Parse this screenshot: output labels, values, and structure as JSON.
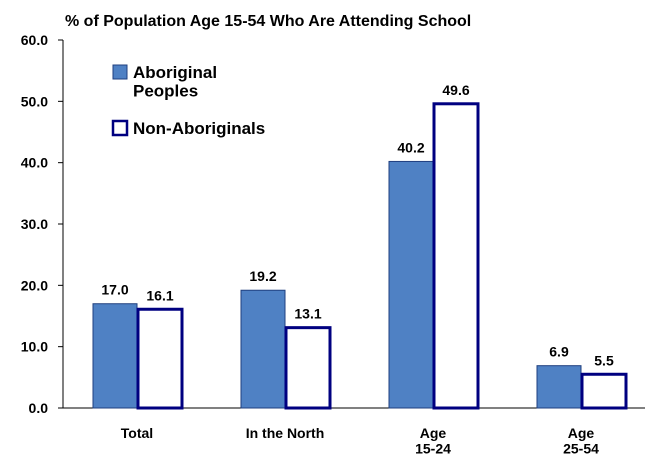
{
  "chart_data": {
    "type": "bar",
    "title": "% of Population Age 15-54 Who Are Attending School",
    "categories": [
      "Total",
      "In the North",
      "Age\n15-24",
      "Age\n25-54"
    ],
    "series": [
      {
        "name": "Aboriginal\nPeoples",
        "color": "#4f81c4",
        "edge": "#1f3f7f",
        "values": [
          17.0,
          19.2,
          40.2,
          6.9
        ],
        "value_labels": [
          "17.0",
          "19.2",
          "40.2",
          "6.9"
        ]
      },
      {
        "name": "Non-Aboriginals",
        "color": "#ffffff",
        "edge": "#000080",
        "values": [
          16.1,
          13.1,
          49.6,
          5.5
        ],
        "value_labels": [
          "16.1",
          "13.1",
          "49.6",
          "5.5"
        ]
      }
    ],
    "ylim": [
      0,
      60
    ],
    "yticks": [
      {
        "value": 0,
        "label": "0.0"
      },
      {
        "value": 10,
        "label": "10.0"
      },
      {
        "value": 20,
        "label": "20.0"
      },
      {
        "value": 30,
        "label": "30.0"
      },
      {
        "value": 40,
        "label": "40.0"
      },
      {
        "value": 50,
        "label": "50.0"
      },
      {
        "value": 60,
        "label": "60.0"
      }
    ],
    "legend": "upper left"
  }
}
